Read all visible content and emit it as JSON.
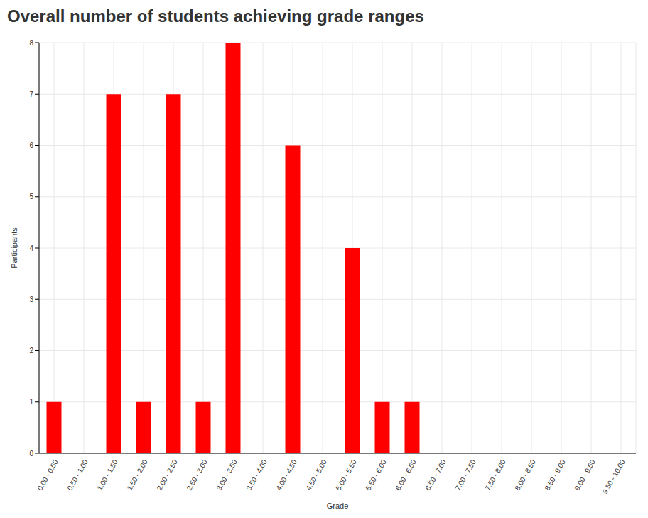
{
  "chart_data": {
    "type": "bar",
    "title": "Overall number of students achieving grade ranges",
    "x_label": "Grade",
    "y_label": "Participants",
    "categories": [
      "0.00 - 0.50",
      "0.50 - 1.00",
      "1.00 - 1.50",
      "1.50 - 2.00",
      "2.00 - 2.50",
      "2.50 - 3.00",
      "3.00 - 3.50",
      "3.50 - 4.00",
      "4.00 - 4.50",
      "4.50 - 5.00",
      "5.00 - 5.50",
      "5.50 - 6.00",
      "6.00 - 6.50",
      "6.50 - 7.00",
      "7.00 - 7.50",
      "7.50 - 8.00",
      "8.00 - 8.50",
      "8.50 - 9.00",
      "9.00 - 9.50",
      "9.50 - 10.00"
    ],
    "values": [
      1,
      0,
      7,
      1,
      7,
      1,
      8,
      0,
      6,
      0,
      4,
      1,
      1,
      0,
      0,
      0,
      0,
      0,
      0,
      0
    ],
    "color": "#ff0000",
    "ylim": [
      0,
      8
    ],
    "yticks": [
      0,
      1,
      2,
      3,
      4,
      5,
      6,
      7,
      8
    ],
    "grid": true
  }
}
